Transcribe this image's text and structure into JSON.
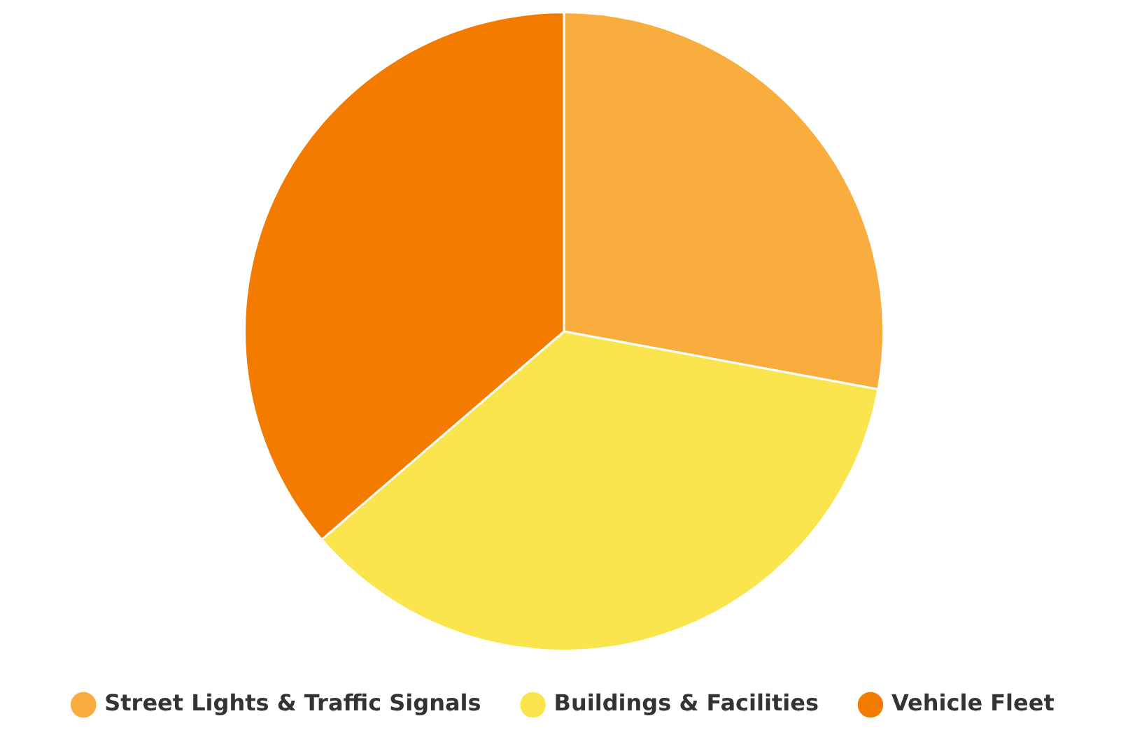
{
  "chart_data": {
    "type": "pie",
    "categories": [
      "Street Lights & Traffic Signals",
      "Buildings & Facilities",
      "Vehicle Fleet"
    ],
    "values": [
      27.9,
      35.8,
      36.3
    ],
    "colors": [
      "#f9ad3e",
      "#fbe54f",
      "#f37b00"
    ],
    "legend": "bottom"
  }
}
